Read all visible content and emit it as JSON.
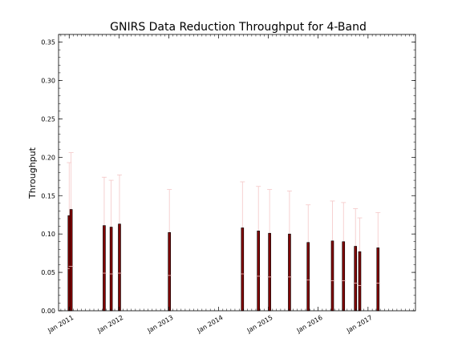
{
  "chart_data": {
    "type": "bar",
    "title": "GNIRS Data Reduction Throughput for 4-Band",
    "xlabel": "",
    "ylabel": "Throughput",
    "ylim": [
      0,
      0.36
    ],
    "xlim": [
      "2010-10-15",
      "2017-12-15"
    ],
    "yticks": [
      "0.00",
      "0.05",
      "0.10",
      "0.15",
      "0.20",
      "0.25",
      "0.30",
      "0.35"
    ],
    "xticks": [
      {
        "label": "Jan 2011",
        "date": "2011-01-01"
      },
      {
        "label": "Jan 2012",
        "date": "2012-01-01"
      },
      {
        "label": "Jan 2013",
        "date": "2013-01-01"
      },
      {
        "label": "Jan 2014",
        "date": "2014-01-01"
      },
      {
        "label": "Jan 2015",
        "date": "2015-01-01"
      },
      {
        "label": "Jan 2016",
        "date": "2016-01-01"
      },
      {
        "label": "Jan 2017",
        "date": "2017-01-01"
      }
    ],
    "grid": false,
    "bar_color": "#800000",
    "error_color": "#f4c6c6",
    "points": [
      {
        "date": "2011-01-01",
        "value": 0.124,
        "low": 0.055,
        "high": 0.193
      },
      {
        "date": "2011-01-15",
        "value": 0.132,
        "low": 0.058,
        "high": 0.206
      },
      {
        "date": "2011-09-15",
        "value": 0.111,
        "low": 0.049,
        "high": 0.174
      },
      {
        "date": "2011-11-05",
        "value": 0.109,
        "low": 0.048,
        "high": 0.17
      },
      {
        "date": "2012-01-05",
        "value": 0.113,
        "low": 0.049,
        "high": 0.177
      },
      {
        "date": "2013-01-05",
        "value": 0.102,
        "low": 0.046,
        "high": 0.158
      },
      {
        "date": "2014-06-25",
        "value": 0.108,
        "low": 0.048,
        "high": 0.168
      },
      {
        "date": "2014-10-20",
        "value": 0.104,
        "low": 0.045,
        "high": 0.162
      },
      {
        "date": "2015-01-10",
        "value": 0.101,
        "low": 0.044,
        "high": 0.158
      },
      {
        "date": "2015-06-05",
        "value": 0.1,
        "low": 0.044,
        "high": 0.156
      },
      {
        "date": "2015-10-20",
        "value": 0.089,
        "low": 0.04,
        "high": 0.138
      },
      {
        "date": "2016-04-15",
        "value": 0.091,
        "low": 0.039,
        "high": 0.143
      },
      {
        "date": "2016-07-05",
        "value": 0.09,
        "low": 0.039,
        "high": 0.141
      },
      {
        "date": "2016-10-01",
        "value": 0.084,
        "low": 0.036,
        "high": 0.133
      },
      {
        "date": "2016-11-01",
        "value": 0.077,
        "low": 0.033,
        "high": 0.121
      },
      {
        "date": "2017-03-15",
        "value": 0.082,
        "low": 0.036,
        "high": 0.128
      }
    ]
  }
}
